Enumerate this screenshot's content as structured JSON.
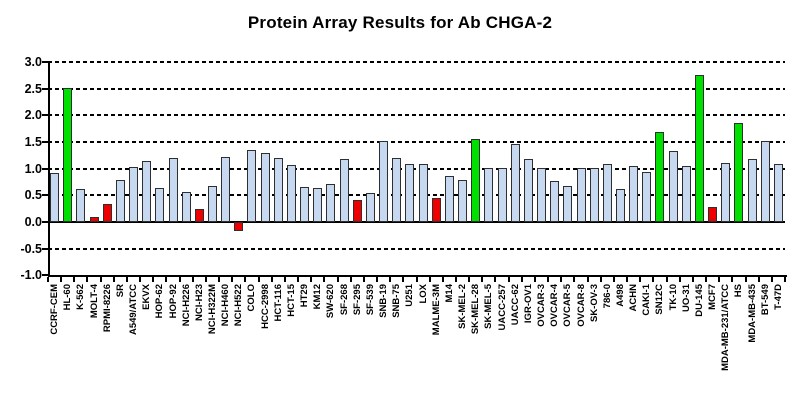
{
  "chart_data": {
    "type": "bar",
    "title": "Protein Array Results for Ab CHGA-2",
    "categories": [
      "CCRF-CEM",
      "HL-60",
      "K-562",
      "MOLT-4",
      "RPMI-8226",
      "SR",
      "A549/ATCC",
      "EKVX",
      "HOP-62",
      "HOP-92",
      "NCI-H226",
      "NCI-H23",
      "NCI-H322M",
      "NCI-H460",
      "NCI-H522",
      "COLO",
      "HCC-2998",
      "HCT-116",
      "HCT-15",
      "HT29",
      "KM12",
      "SW-620",
      "SF-268",
      "SF-295",
      "SF-539",
      "SNB-19",
      "SNB-75",
      "U251",
      "LOX",
      "MALME-3M",
      "M14",
      "SK-MEL-2",
      "SK-MEL-28",
      "SK-MEL-5",
      "UACC-257",
      "UACC-62",
      "IGR-OV1",
      "OVCAR-3",
      "OVCAR-4",
      "OVCAR-5",
      "OVCAR-8",
      "SK-OV-3",
      "786-0",
      "A498",
      "ACHN",
      "CAKI-1",
      "SN12C",
      "TK-10",
      "UO-31",
      "DU-145",
      "MCF7",
      "MDA-MB-231/ATCC",
      "HS",
      "MDA-MB-435",
      "BT-549",
      "T-47D"
    ],
    "values": [
      0.91,
      2.52,
      0.61,
      0.09,
      0.33,
      0.79,
      1.04,
      1.14,
      0.64,
      1.21,
      0.56,
      0.24,
      0.68,
      1.22,
      -0.16,
      1.35,
      1.29,
      1.21,
      1.07,
      0.66,
      0.63,
      0.72,
      1.18,
      0.41,
      0.55,
      1.52,
      1.2,
      1.09,
      1.08,
      0.45,
      0.87,
      0.78,
      1.55,
      1.01,
      1.01,
      1.47,
      1.18,
      1.01,
      0.76,
      0.67,
      1.02,
      1.01,
      1.08,
      0.61,
      1.05,
      0.94,
      1.69,
      1.33,
      1.06,
      2.75,
      0.29,
      1.1,
      1.85,
      1.19,
      1.52,
      1.08
    ],
    "point_colors": [
      "blue",
      "green",
      "blue",
      "red",
      "red",
      "blue",
      "blue",
      "blue",
      "blue",
      "blue",
      "blue",
      "red",
      "blue",
      "blue",
      "red",
      "blue",
      "blue",
      "blue",
      "blue",
      "blue",
      "blue",
      "blue",
      "blue",
      "red",
      "blue",
      "blue",
      "blue",
      "blue",
      "blue",
      "red",
      "blue",
      "blue",
      "green",
      "blue",
      "blue",
      "blue",
      "blue",
      "blue",
      "blue",
      "blue",
      "blue",
      "blue",
      "blue",
      "blue",
      "blue",
      "blue",
      "green",
      "blue",
      "blue",
      "green",
      "red",
      "blue",
      "green",
      "blue",
      "blue",
      "blue"
    ],
    "palette": {
      "blue": "#C6D9F1",
      "green": "#00E000",
      "red": "#EE0000"
    },
    "xlabel": "",
    "ylabel": "",
    "ylim": [
      -1.0,
      3.0
    ],
    "ytick_labels": [
      "3.0",
      "2.5",
      "2.0",
      "1.5",
      "1.0",
      "0.5",
      "0.0",
      "-0.5",
      "-1.0"
    ],
    "ytick_values": [
      3.0,
      2.5,
      2.0,
      1.5,
      1.0,
      0.5,
      0.0,
      -0.5,
      -1.0
    ],
    "grid": "horizontal-dashed",
    "legend": "none"
  }
}
